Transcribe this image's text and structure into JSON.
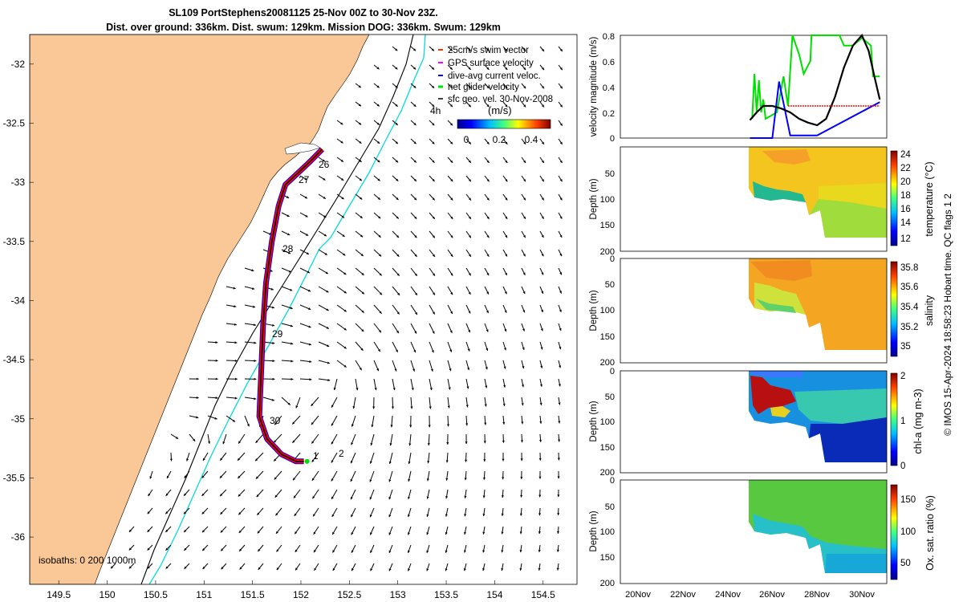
{
  "title_line1": "SL109 PortStephens20081125 25-Nov 00Z to 30-Nov 23Z.",
  "title_line2": "Dist. over ground: 336km. Dist. swum: 129km. Mission DOG: 336km. Swum: 129km",
  "side_credit": "© IMOS 15-Apr-2024 18:58:23 Hobart time. QC flags 1  2",
  "colors": {
    "land": "#fac896",
    "track": "#ff0000",
    "swim_vector": "#ff0000",
    "gps_velocity": "#ff00ff",
    "dive_avg": "#0000ff",
    "net_velocity": "#00e000",
    "isobath_200": "#000000",
    "isobath_1000": "#00dcdc"
  },
  "map": {
    "legend": [
      {
        "label": "25cm/s swim vector",
        "color": "#ff3300"
      },
      {
        "label": "GPS surface velocity",
        "color": "#ff00ff"
      },
      {
        "label": "dive-avg current veloc.",
        "color": "#0000ff"
      },
      {
        "label": "net glider velocity",
        "color": "#00e000"
      },
      {
        "label": "sfc geo. vel. 30-Nov-2008",
        "color": "#000000"
      }
    ],
    "legend_4h": "4h",
    "colorbar_title": "(m/s)",
    "colorbar_ticks": [
      "0",
      "0.2",
      "0.4"
    ],
    "isobaths_label": "isobaths: 0   200  1000m",
    "day_labels": [
      "26",
      "27",
      "28",
      "29",
      "30",
      "1",
      "2"
    ]
  },
  "chart_data": [
    {
      "type": "scatter",
      "name": "map",
      "xlim": [
        149.2,
        154.85
      ],
      "ylim": [
        -36.4,
        -31.75
      ],
      "xticks": [
        "149.5",
        "150",
        "150.5",
        "151",
        "151.5",
        "152",
        "152.5",
        "153",
        "153.5",
        "154",
        "154.5"
      ],
      "yticks": [
        "-32",
        "-32.5",
        "-33",
        "-33.5",
        "-34",
        "-34.5",
        "-35",
        "-35.5",
        "-36"
      ],
      "track": [
        [
          152.22,
          -32.72
        ],
        [
          152.1,
          -32.82
        ],
        [
          151.97,
          -32.92
        ],
        [
          151.84,
          -33.02
        ],
        [
          151.77,
          -33.2
        ],
        [
          151.7,
          -33.5
        ],
        [
          151.64,
          -33.85
        ],
        [
          151.61,
          -34.2
        ],
        [
          151.59,
          -34.6
        ],
        [
          151.57,
          -34.98
        ],
        [
          151.65,
          -35.17
        ],
        [
          151.8,
          -35.3
        ],
        [
          151.95,
          -35.36
        ],
        [
          152.03,
          -35.36
        ]
      ],
      "day_positions": [
        [
          152.2,
          -32.9
        ],
        [
          152.02,
          -33.03
        ],
        [
          151.84,
          -33.43
        ],
        [
          151.73,
          -34.32
        ],
        [
          151.76,
          -35.05
        ],
        [
          152.12,
          -35.36
        ],
        [
          152.35,
          -35.33
        ]
      ]
    },
    {
      "type": "line",
      "name": "velocity",
      "ylabel": "velocity magnitude (m/s)",
      "ylim": [
        0,
        0.8
      ],
      "yticks": [
        "0",
        "0.2",
        "0.4",
        "0.6",
        "0.8"
      ],
      "series": [
        {
          "color": "#00e000",
          "points": [
            [
              25.1,
              0.15
            ],
            [
              25.2,
              0.5
            ],
            [
              25.3,
              0.2
            ],
            [
              25.4,
              0.45
            ],
            [
              25.5,
              0.2
            ],
            [
              25.6,
              0.3
            ],
            [
              25.7,
              0.15
            ],
            [
              26.2,
              0.2
            ],
            [
              26.5,
              0.48
            ],
            [
              26.7,
              0.25
            ],
            [
              26.9,
              0.8
            ],
            [
              27.2,
              0.65
            ],
            [
              27.4,
              0.5
            ],
            [
              27.7,
              0.6
            ],
            [
              27.75,
              0.8
            ],
            [
              28.5,
              0.8
            ],
            [
              29.0,
              0.8
            ],
            [
              29.2,
              0.72
            ],
            [
              29.6,
              0.72
            ],
            [
              30.0,
              0.78
            ],
            [
              30.4,
              0.72
            ],
            [
              30.5,
              0.48
            ],
            [
              30.8,
              0.48
            ]
          ]
        },
        {
          "color": "#0000ff",
          "points": [
            [
              25.0,
              0.0
            ],
            [
              26.0,
              0.0
            ],
            [
              26.3,
              0.44
            ],
            [
              26.8,
              0.02
            ],
            [
              27.6,
              0.02
            ],
            [
              28.0,
              0.02
            ],
            [
              30.8,
              0.28
            ]
          ]
        },
        {
          "color": "#000000",
          "points": [
            [
              25.0,
              0.14
            ],
            [
              25.3,
              0.2
            ],
            [
              25.6,
              0.25
            ],
            [
              26.0,
              0.25
            ],
            [
              26.4,
              0.23
            ],
            [
              26.8,
              0.2
            ],
            [
              27.2,
              0.15
            ],
            [
              27.6,
              0.12
            ],
            [
              28.0,
              0.1
            ],
            [
              28.4,
              0.15
            ],
            [
              28.8,
              0.32
            ],
            [
              29.2,
              0.55
            ],
            [
              29.6,
              0.72
            ],
            [
              30.0,
              0.8
            ],
            [
              30.3,
              0.68
            ],
            [
              30.6,
              0.45
            ],
            [
              30.8,
              0.3
            ]
          ]
        },
        {
          "color": "#ff0000",
          "points": [
            [
              26.7,
              0.25
            ],
            [
              30.8,
              0.25
            ]
          ]
        }
      ]
    },
    {
      "type": "heatmap",
      "name": "temperature",
      "ylabel": "Depth (m)",
      "colorbar_label": "temperature (°C)",
      "colorbar_ticks": [
        "24",
        "22",
        "20",
        "18",
        "16",
        "14",
        "12"
      ],
      "yticks": [
        "50",
        "100",
        "150",
        "200"
      ],
      "clim": [
        11,
        24.5
      ],
      "ylim": [
        200,
        0
      ]
    },
    {
      "type": "heatmap",
      "name": "salinity",
      "ylabel": "Depth (m)",
      "colorbar_label": "salinity",
      "colorbar_ticks": [
        "35.8",
        "35.6",
        "35.4",
        "35.2",
        "35"
      ],
      "yticks": [
        "0",
        "50",
        "100",
        "150",
        "200"
      ],
      "clim": [
        34.9,
        35.85
      ],
      "ylim": [
        200,
        0
      ]
    },
    {
      "type": "heatmap",
      "name": "chlorophyll",
      "ylabel": "Depth (m)",
      "colorbar_label": "chl-a (mg m-3)",
      "colorbar_ticks": [
        "2",
        "1",
        "0"
      ],
      "yticks": [
        "0",
        "50",
        "100",
        "150",
        "200"
      ],
      "clim": [
        0,
        2
      ],
      "ylim": [
        200,
        0
      ]
    },
    {
      "type": "heatmap",
      "name": "oxygen",
      "ylabel": "Depth (m)",
      "colorbar_label": "Ox. sat. ratio (%)",
      "colorbar_ticks": [
        "150",
        "100",
        "50"
      ],
      "yticks": [
        "0",
        "50",
        "100",
        "150",
        "200"
      ],
      "clim": [
        25,
        175
      ],
      "ylim": [
        200,
        0
      ],
      "xticks": [
        "20Nov",
        "22Nov",
        "24Nov",
        "26Nov",
        "28Nov",
        "30Nov"
      ]
    }
  ]
}
